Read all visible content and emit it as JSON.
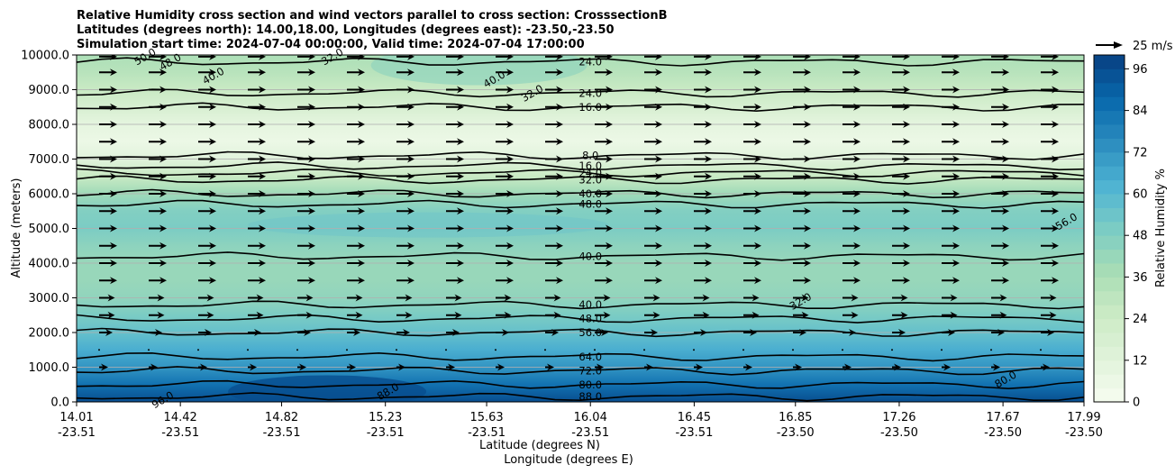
{
  "chart_data": {
    "type": "heatmap",
    "title_lines": [
      "Relative Humidity cross section and wind vectors parallel to cross section: CrosssectionB",
      "Latitudes (degrees north): 14.00,18.00, Longitudes (degrees east): -23.50,-23.50",
      "Simulation start time: 2024-07-04 00:00:00, Valid time: 2024-07-04 17:00:00"
    ],
    "ylabel": "Altitude (meters)",
    "xlabel_lines": [
      "Latitude (degrees N)",
      "Longitude (degrees E)"
    ],
    "ylim": [
      0,
      10000
    ],
    "y_ticks": [
      "0.0",
      "1000.0",
      "2000.0",
      "3000.0",
      "4000.0",
      "5000.0",
      "6000.0",
      "7000.0",
      "8000.0",
      "9000.0",
      "10000.0"
    ],
    "x_ticks": [
      {
        "lat": "14.01",
        "lon": "-23.51"
      },
      {
        "lat": "14.42",
        "lon": "-23.51"
      },
      {
        "lat": "14.82",
        "lon": "-23.51"
      },
      {
        "lat": "15.23",
        "lon": "-23.51"
      },
      {
        "lat": "15.63",
        "lon": "-23.51"
      },
      {
        "lat": "16.04",
        "lon": "-23.51"
      },
      {
        "lat": "16.45",
        "lon": "-23.51"
      },
      {
        "lat": "16.85",
        "lon": "-23.50"
      },
      {
        "lat": "17.26",
        "lon": "-23.50"
      },
      {
        "lat": "17.67",
        "lon": "-23.50"
      },
      {
        "lat": "17.99",
        "lon": "-23.50"
      }
    ],
    "colorbar": {
      "label": "Relative Humidity %",
      "range": [
        0,
        100
      ],
      "ticks": [
        "0",
        "12",
        "24",
        "36",
        "48",
        "60",
        "72",
        "84",
        "96"
      ],
      "colors": [
        "#f7fcf0",
        "#e0f3db",
        "#ccebc5",
        "#a8ddb5",
        "#7bccc4",
        "#4eb3d3",
        "#2b8cbe",
        "#0868ac",
        "#084081"
      ]
    },
    "quiver_key": "25 m/s",
    "rh_profile": [
      {
        "alt": 0,
        "rh": 96
      },
      {
        "alt": 500,
        "rh": 84
      },
      {
        "alt": 1000,
        "rh": 72
      },
      {
        "alt": 1500,
        "rh": 64
      },
      {
        "alt": 2000,
        "rh": 56
      },
      {
        "alt": 2500,
        "rh": 50
      },
      {
        "alt": 3000,
        "rh": 44
      },
      {
        "alt": 3500,
        "rh": 42
      },
      {
        "alt": 4000,
        "rh": 42
      },
      {
        "alt": 4500,
        "rh": 45
      },
      {
        "alt": 5000,
        "rh": 50
      },
      {
        "alt": 5500,
        "rh": 48
      },
      {
        "alt": 6000,
        "rh": 40
      },
      {
        "alt": 6500,
        "rh": 26
      },
      {
        "alt": 7000,
        "rh": 12
      },
      {
        "alt": 7500,
        "rh": 6
      },
      {
        "alt": 8000,
        "rh": 10
      },
      {
        "alt": 8500,
        "rh": 18
      },
      {
        "alt": 9000,
        "rh": 26
      },
      {
        "alt": 9500,
        "rh": 32
      },
      {
        "alt": 10000,
        "rh": 36
      }
    ],
    "contours": [
      {
        "label": "88.0",
        "alt": 150
      },
      {
        "label": "80.0",
        "alt": 500
      },
      {
        "label": "72.0",
        "alt": 900
      },
      {
        "label": "64.0",
        "alt": 1300
      },
      {
        "label": "56.0",
        "alt": 2000
      },
      {
        "label": "48.0",
        "alt": 2400
      },
      {
        "label": "40.0",
        "alt": 2800
      },
      {
        "label": "40.0",
        "alt": 4200
      },
      {
        "label": "48.0",
        "alt": 5700
      },
      {
        "label": "40.0",
        "alt": 6000
      },
      {
        "label": "32.0",
        "alt": 6400
      },
      {
        "label": "24.0",
        "alt": 6600
      },
      {
        "label": "16.0",
        "alt": 6800
      },
      {
        "label": "8.0",
        "alt": 7100
      },
      {
        "label": "16.0",
        "alt": 8500
      },
      {
        "label": "24.0",
        "alt": 8900
      },
      {
        "label": "24.0",
        "alt": 9800
      }
    ],
    "extra_labels": [
      {
        "label": "96.0",
        "lat": 14.35,
        "alt": 60
      },
      {
        "label": "40.0",
        "lat": 14.55,
        "alt": 9400
      },
      {
        "label": "48.0",
        "lat": 14.38,
        "alt": 9800
      },
      {
        "label": "50.0",
        "lat": 14.28,
        "alt": 9950
      },
      {
        "label": "32.0",
        "lat": 15.02,
        "alt": 9950
      },
      {
        "label": "40.0",
        "lat": 15.66,
        "alt": 9300
      },
      {
        "label": "32.0",
        "lat": 15.81,
        "alt": 8900
      },
      {
        "label": "32.0",
        "lat": 16.87,
        "alt": 2900
      },
      {
        "label": "56.0",
        "lat": 17.92,
        "alt": 5200
      },
      {
        "label": "80.0",
        "lat": 17.68,
        "alt": 650
      },
      {
        "label": "88.0",
        "lat": 15.24,
        "alt": 300
      }
    ],
    "wind_rows": [
      {
        "alt": 9950,
        "u": 4
      },
      {
        "alt": 9500,
        "u": 4
      },
      {
        "alt": 9000,
        "u": 4
      },
      {
        "alt": 8500,
        "u": 4
      },
      {
        "alt": 8000,
        "u": 4
      },
      {
        "alt": 7500,
        "u": 4
      },
      {
        "alt": 7000,
        "u": 4
      },
      {
        "alt": 6500,
        "u": 4
      },
      {
        "alt": 6000,
        "u": 4
      },
      {
        "alt": 5500,
        "u": 4
      },
      {
        "alt": 5000,
        "u": 4
      },
      {
        "alt": 4500,
        "u": 4
      },
      {
        "alt": 4000,
        "u": 4
      },
      {
        "alt": 3500,
        "u": 4
      },
      {
        "alt": 3000,
        "u": 3.5
      },
      {
        "alt": 2500,
        "u": 3.5
      },
      {
        "alt": 2000,
        "u": 3
      },
      {
        "alt": 1500,
        "u": 0.5
      },
      {
        "alt": 1000,
        "u": 2
      }
    ]
  }
}
